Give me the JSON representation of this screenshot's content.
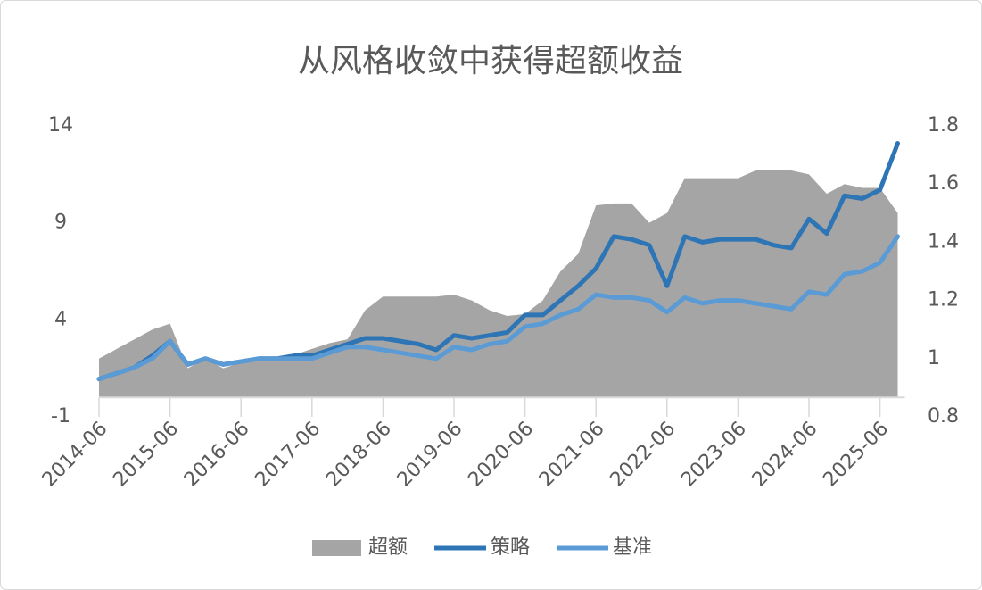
{
  "chart_data": {
    "type": "combo",
    "title": "从风格收敛中获得超额收益",
    "categories": [
      "2014-06",
      null,
      null,
      null,
      "2015-06",
      null,
      null,
      null,
      "2016-06",
      null,
      null,
      null,
      "2017-06",
      null,
      null,
      null,
      "2018-06",
      null,
      null,
      null,
      "2019-06",
      null,
      null,
      null,
      "2020-06",
      null,
      null,
      null,
      "2021-06",
      null,
      null,
      null,
      "2022-06",
      null,
      null,
      null,
      "2023-06",
      null,
      null,
      null,
      "2024-06",
      null,
      null,
      null,
      "2025-06",
      null
    ],
    "series": [
      {
        "name": "超额",
        "type": "area",
        "axis": "y",
        "color": "#a5a5a5",
        "values": [
          2,
          2.5,
          3,
          3.5,
          3.8,
          1.5,
          2,
          1.5,
          1.8,
          2,
          2,
          2.2,
          2.5,
          2.8,
          3,
          4.5,
          5.2,
          5.2,
          5.2,
          5.2,
          5.3,
          5,
          4.5,
          4.2,
          4.3,
          5,
          6.5,
          7.4,
          9.9,
          10,
          10,
          9,
          9.5,
          11.3,
          11.3,
          11.3,
          11.3,
          11.7,
          11.7,
          11.7,
          11.5,
          10.5,
          11,
          10.8,
          10.8,
          9.5
        ]
      },
      {
        "name": "策略",
        "type": "line",
        "axis": "y2",
        "color": "#2e75b6",
        "values": [
          0.93,
          0.95,
          0.97,
          1.01,
          1.06,
          0.98,
          1.0,
          0.98,
          0.99,
          1.0,
          1.0,
          1.01,
          1.01,
          1.03,
          1.05,
          1.07,
          1.07,
          1.06,
          1.05,
          1.03,
          1.08,
          1.07,
          1.08,
          1.09,
          1.15,
          1.15,
          1.2,
          1.25,
          1.31,
          1.42,
          1.41,
          1.39,
          1.25,
          1.42,
          1.4,
          1.41,
          1.41,
          1.41,
          1.39,
          1.38,
          1.48,
          1.43,
          1.56,
          1.55,
          1.58,
          1.74
        ]
      },
      {
        "name": "基准",
        "type": "line",
        "axis": "y2",
        "color": "#5b9bd5",
        "values": [
          0.93,
          0.95,
          0.97,
          1.0,
          1.06,
          0.98,
          1.0,
          0.98,
          0.99,
          1.0,
          1.0,
          1.0,
          1.0,
          1.02,
          1.04,
          1.04,
          1.03,
          1.02,
          1.01,
          1.0,
          1.04,
          1.03,
          1.05,
          1.06,
          1.11,
          1.12,
          1.15,
          1.17,
          1.22,
          1.21,
          1.21,
          1.2,
          1.16,
          1.21,
          1.19,
          1.2,
          1.2,
          1.19,
          1.18,
          1.17,
          1.23,
          1.22,
          1.29,
          1.3,
          1.33,
          1.42
        ]
      }
    ],
    "ylim": [
      -1,
      14
    ],
    "yticks": [
      -1,
      4,
      9,
      14
    ],
    "y2lim": [
      0.8,
      1.8
    ],
    "y2ticks": [
      0.8,
      1,
      1.2,
      1.4,
      1.6,
      1.8
    ],
    "legend": "bottom"
  }
}
